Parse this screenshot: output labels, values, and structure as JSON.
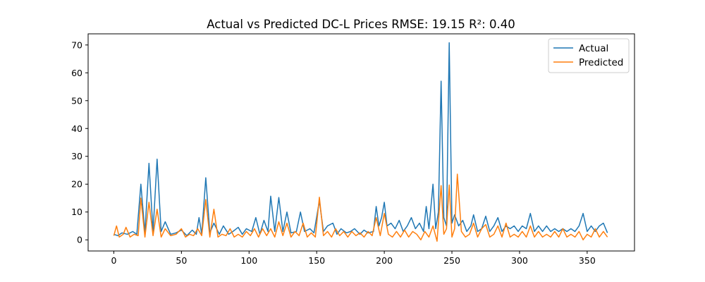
{
  "chart_data": {
    "type": "line",
    "title": "Actual vs Predicted DC-L Prices RMSE: 19.15 R²: 0.40",
    "xlabel": "",
    "ylabel": "",
    "xlim": [
      -19,
      385
    ],
    "ylim": [
      -4,
      74
    ],
    "x_ticks": [
      0,
      50,
      100,
      150,
      200,
      250,
      300,
      350
    ],
    "y_ticks": [
      0,
      10,
      20,
      30,
      40,
      50,
      60,
      70
    ],
    "grid": false,
    "legend_position": "upper right",
    "series": [
      {
        "name": "Actual",
        "color": "#1f77b4",
        "points": [
          [
            0,
            2
          ],
          [
            3,
            1.5
          ],
          [
            6,
            2.5
          ],
          [
            10,
            2
          ],
          [
            14,
            3
          ],
          [
            17,
            2
          ],
          [
            20,
            20
          ],
          [
            23,
            2.5
          ],
          [
            26,
            27.5
          ],
          [
            29,
            3
          ],
          [
            32,
            29
          ],
          [
            35,
            3
          ],
          [
            38,
            6.5
          ],
          [
            42,
            2
          ],
          [
            46,
            2.5
          ],
          [
            50,
            3.5
          ],
          [
            54,
            1.5
          ],
          [
            58,
            3.5
          ],
          [
            61,
            2
          ],
          [
            63,
            8
          ],
          [
            65,
            2
          ],
          [
            68,
            22.3
          ],
          [
            71,
            2.5
          ],
          [
            74,
            6
          ],
          [
            78,
            2
          ],
          [
            81,
            5
          ],
          [
            85,
            2
          ],
          [
            88,
            3
          ],
          [
            92,
            4.5
          ],
          [
            95,
            2
          ],
          [
            98,
            4
          ],
          [
            102,
            3
          ],
          [
            105,
            8
          ],
          [
            108,
            2
          ],
          [
            111,
            7
          ],
          [
            114,
            3
          ],
          [
            116,
            15.7
          ],
          [
            119,
            3
          ],
          [
            122,
            15.2
          ],
          [
            125,
            3
          ],
          [
            128,
            10
          ],
          [
            131,
            2.5
          ],
          [
            135,
            3
          ],
          [
            138,
            10
          ],
          [
            141,
            3
          ],
          [
            145,
            4
          ],
          [
            148,
            2.5
          ],
          [
            152,
            14
          ],
          [
            155,
            3
          ],
          [
            158,
            5
          ],
          [
            162,
            6
          ],
          [
            165,
            2
          ],
          [
            168,
            4
          ],
          [
            172,
            2.5
          ],
          [
            175,
            3
          ],
          [
            178,
            4
          ],
          [
            182,
            2
          ],
          [
            185,
            3.5
          ],
          [
            188,
            2.5
          ],
          [
            192,
            3
          ],
          [
            194,
            12
          ],
          [
            196,
            5
          ],
          [
            198,
            8
          ],
          [
            200,
            13.5
          ],
          [
            202,
            5
          ],
          [
            205,
            6
          ],
          [
            208,
            4
          ],
          [
            211,
            7
          ],
          [
            214,
            3
          ],
          [
            217,
            5
          ],
          [
            220,
            8
          ],
          [
            223,
            4
          ],
          [
            226,
            6
          ],
          [
            229,
            3
          ],
          [
            231,
            12
          ],
          [
            233,
            4
          ],
          [
            236,
            20
          ],
          [
            238,
            4
          ],
          [
            240,
            10
          ],
          [
            242,
            57
          ],
          [
            244,
            8
          ],
          [
            246,
            5
          ],
          [
            248,
            70.8
          ],
          [
            250,
            6
          ],
          [
            252,
            9
          ],
          [
            255,
            5
          ],
          [
            258,
            7
          ],
          [
            261,
            3
          ],
          [
            264,
            5
          ],
          [
            266,
            9
          ],
          [
            269,
            3
          ],
          [
            272,
            4
          ],
          [
            275,
            8.5
          ],
          [
            278,
            3
          ],
          [
            281,
            5
          ],
          [
            284,
            8
          ],
          [
            287,
            3
          ],
          [
            290,
            5
          ],
          [
            293,
            4
          ],
          [
            296,
            5
          ],
          [
            299,
            3
          ],
          [
            302,
            5
          ],
          [
            305,
            4
          ],
          [
            308,
            9.5
          ],
          [
            311,
            3
          ],
          [
            314,
            5
          ],
          [
            317,
            3
          ],
          [
            320,
            5
          ],
          [
            323,
            3
          ],
          [
            326,
            4
          ],
          [
            329,
            3
          ],
          [
            332,
            4
          ],
          [
            335,
            3
          ],
          [
            338,
            4
          ],
          [
            341,
            3
          ],
          [
            344,
            5
          ],
          [
            347,
            9.5
          ],
          [
            350,
            3
          ],
          [
            353,
            5
          ],
          [
            356,
            3
          ],
          [
            359,
            5
          ],
          [
            362,
            6
          ],
          [
            365,
            2.5
          ]
        ]
      },
      {
        "name": "Predicted",
        "color": "#ff7f0e",
        "points": [
          [
            0,
            1.5
          ],
          [
            2,
            5
          ],
          [
            4,
            1
          ],
          [
            7,
            2
          ],
          [
            9,
            4.5
          ],
          [
            12,
            1
          ],
          [
            15,
            2
          ],
          [
            18,
            1.5
          ],
          [
            20,
            15
          ],
          [
            23,
            1
          ],
          [
            26,
            13.5
          ],
          [
            29,
            1.5
          ],
          [
            32,
            11
          ],
          [
            35,
            1
          ],
          [
            38,
            4
          ],
          [
            42,
            1.5
          ],
          [
            46,
            2
          ],
          [
            50,
            4
          ],
          [
            53,
            1
          ],
          [
            56,
            2
          ],
          [
            59,
            1.5
          ],
          [
            62,
            4
          ],
          [
            65,
            1.5
          ],
          [
            68,
            14.5
          ],
          [
            71,
            1
          ],
          [
            74,
            11
          ],
          [
            77,
            1
          ],
          [
            80,
            2
          ],
          [
            83,
            1.5
          ],
          [
            86,
            4
          ],
          [
            89,
            1
          ],
          [
            92,
            2
          ],
          [
            95,
            1
          ],
          [
            98,
            3
          ],
          [
            101,
            1.5
          ],
          [
            104,
            4
          ],
          [
            107,
            1
          ],
          [
            110,
            4
          ],
          [
            113,
            1.5
          ],
          [
            116,
            4
          ],
          [
            119,
            1
          ],
          [
            122,
            6.5
          ],
          [
            125,
            1.5
          ],
          [
            128,
            6
          ],
          [
            131,
            1
          ],
          [
            134,
            3
          ],
          [
            137,
            1.5
          ],
          [
            140,
            6
          ],
          [
            143,
            1
          ],
          [
            146,
            2.5
          ],
          [
            149,
            1
          ],
          [
            152,
            15.3
          ],
          [
            155,
            1.5
          ],
          [
            158,
            3
          ],
          [
            161,
            1
          ],
          [
            164,
            4
          ],
          [
            167,
            1.5
          ],
          [
            170,
            3
          ],
          [
            173,
            1
          ],
          [
            176,
            3
          ],
          [
            179,
            1.5
          ],
          [
            182,
            2.5
          ],
          [
            185,
            1
          ],
          [
            188,
            3
          ],
          [
            191,
            1.5
          ],
          [
            194,
            8
          ],
          [
            197,
            1.5
          ],
          [
            200,
            9.5
          ],
          [
            203,
            2
          ],
          [
            206,
            1
          ],
          [
            209,
            3
          ],
          [
            212,
            1
          ],
          [
            215,
            3.5
          ],
          [
            218,
            1
          ],
          [
            221,
            3
          ],
          [
            224,
            2
          ],
          [
            227,
            0
          ],
          [
            230,
            3
          ],
          [
            233,
            1
          ],
          [
            236,
            5
          ],
          [
            239,
            -0.5
          ],
          [
            242,
            19.5
          ],
          [
            244,
            2
          ],
          [
            246,
            4
          ],
          [
            248,
            19.7
          ],
          [
            250,
            1
          ],
          [
            252,
            4
          ],
          [
            254,
            23.6
          ],
          [
            257,
            3
          ],
          [
            260,
            1
          ],
          [
            263,
            2
          ],
          [
            266,
            6
          ],
          [
            269,
            1
          ],
          [
            272,
            4
          ],
          [
            275,
            5.5
          ],
          [
            278,
            1
          ],
          [
            281,
            2
          ],
          [
            284,
            5
          ],
          [
            287,
            1
          ],
          [
            290,
            6
          ],
          [
            293,
            1
          ],
          [
            296,
            2
          ],
          [
            299,
            1
          ],
          [
            302,
            3
          ],
          [
            305,
            1
          ],
          [
            308,
            5
          ],
          [
            311,
            1
          ],
          [
            314,
            3
          ],
          [
            317,
            1
          ],
          [
            320,
            2
          ],
          [
            323,
            1
          ],
          [
            326,
            3
          ],
          [
            329,
            1
          ],
          [
            332,
            4
          ],
          [
            335,
            1
          ],
          [
            338,
            2
          ],
          [
            341,
            1
          ],
          [
            344,
            3
          ],
          [
            347,
            0
          ],
          [
            350,
            2
          ],
          [
            353,
            1
          ],
          [
            356,
            4
          ],
          [
            359,
            1
          ],
          [
            362,
            3
          ],
          [
            365,
            1
          ]
        ]
      }
    ]
  }
}
